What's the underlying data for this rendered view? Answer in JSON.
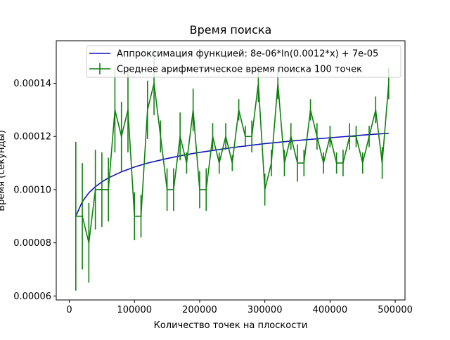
{
  "chart_data": {
    "type": "line",
    "title": "Время поиска",
    "xlabel": "Количество точек на плоскости",
    "ylabel": "Время (секунды)",
    "xlim": [
      -20000,
      515000
    ],
    "ylim": [
      5.85e-05,
      0.000156
    ],
    "x_ticks": [
      0,
      100000,
      200000,
      300000,
      400000,
      500000
    ],
    "x_tick_labels": [
      "0",
      "100000",
      "200000",
      "300000",
      "400000",
      "500000"
    ],
    "y_ticks": [
      6e-05,
      8e-05,
      0.0001,
      0.00012,
      0.00014
    ],
    "y_tick_labels": [
      "0.00006",
      "0.00008",
      "0.00010",
      "0.00012",
      "0.00014"
    ],
    "grid": false,
    "legend_position": "top-right",
    "colors": {
      "fit": "#1010c0",
      "data": "#108010"
    },
    "series": [
      {
        "name": "Аппроксимация функцией: 8e-06*ln(0.0012*x) + 7e-05",
        "kind": "line",
        "x": [
          10000,
          20000,
          30000,
          40000,
          50000,
          60000,
          80000,
          100000,
          120000,
          150000,
          180000,
          200000,
          250000,
          300000,
          350000,
          400000,
          450000,
          490000
        ],
        "y": [
          9e-05,
          9.55e-05,
          9.88e-05,
          0.0001011,
          0.0001029,
          0.0001044,
          0.0001067,
          0.0001085,
          0.00011,
          0.0001117,
          0.0001132,
          0.000114,
          0.0001158,
          0.0001173,
          0.0001185,
          0.0001195,
          0.0001205,
          0.0001212
        ]
      },
      {
        "name": "Среднее арифметическое время поиска 100 точек",
        "kind": "errorbar",
        "x": [
          10000,
          20000,
          30000,
          40000,
          50000,
          60000,
          70000,
          80000,
          90000,
          100000,
          110000,
          120000,
          130000,
          140000,
          150000,
          160000,
          170000,
          180000,
          190000,
          200000,
          210000,
          220000,
          230000,
          240000,
          250000,
          260000,
          270000,
          280000,
          290000,
          300000,
          310000,
          320000,
          330000,
          340000,
          350000,
          360000,
          370000,
          380000,
          390000,
          400000,
          410000,
          420000,
          430000,
          440000,
          450000,
          460000,
          470000,
          480000,
          490000
        ],
        "y": [
          9e-05,
          9e-05,
          8e-05,
          0.0001,
          0.0001,
          0.0001,
          0.00013,
          0.00012,
          0.00013,
          9e-05,
          9e-05,
          0.00013,
          0.00014,
          0.00012,
          0.0001,
          0.0001,
          0.00012,
          0.00011,
          0.00013,
          0.0001,
          0.0001,
          0.00012,
          0.00011,
          0.00012,
          0.00011,
          0.00013,
          0.00012,
          0.00012,
          0.00014,
          0.0001,
          0.00011,
          0.00014,
          0.00011,
          0.00012,
          0.00011,
          0.00011,
          0.00013,
          0.00012,
          0.00011,
          0.00012,
          0.00011,
          0.00011,
          0.00012,
          0.00012,
          0.00011,
          0.00012,
          0.00013,
          0.00011,
          0.00014
        ],
        "yerr": [
          2.8e-05,
          2e-05,
          1.5e-05,
          1.5e-05,
          1.4e-05,
          1.2e-05,
          1.6e-05,
          1.3e-05,
          1.6e-05,
          9e-06,
          8e-06,
          1.1e-05,
          1.2e-05,
          6e-06,
          8e-06,
          8e-06,
          9e-06,
          4e-06,
          8e-06,
          7e-06,
          8e-06,
          5e-06,
          4e-06,
          5e-06,
          3e-06,
          4e-06,
          4e-06,
          6e-06,
          7e-06,
          6e-06,
          5e-06,
          6e-06,
          5e-06,
          5e-06,
          7e-06,
          5e-06,
          4e-06,
          5e-06,
          4e-06,
          4e-06,
          4e-06,
          5e-06,
          5e-06,
          4e-06,
          4e-06,
          4e-06,
          5e-06,
          6e-06,
          6e-06
        ]
      }
    ]
  }
}
